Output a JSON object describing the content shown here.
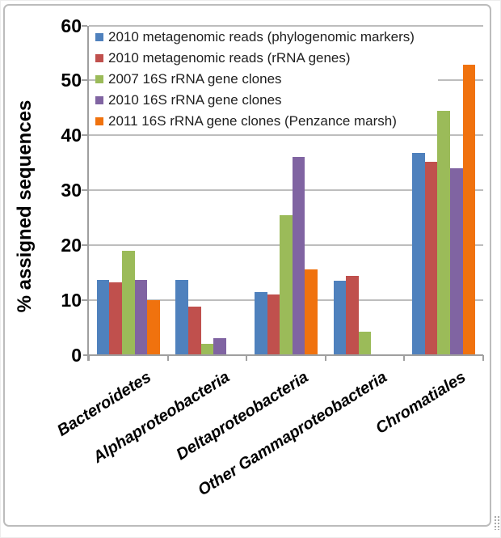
{
  "chart_data": {
    "type": "bar",
    "title": "",
    "xlabel": "",
    "ylabel": "% assigned sequences",
    "ylim": [
      0,
      60
    ],
    "yticks": [
      0,
      10,
      20,
      30,
      40,
      50,
      60
    ],
    "grid": true,
    "legend_position": "top-left-inside",
    "categories": [
      "Bacteroidetes",
      "Alphaproteobacteria",
      "Deltaproteobacteria",
      "Other Gammaproteobacteria",
      "Chromatiales"
    ],
    "series": [
      {
        "name": "2010 metagenomic reads (phylogenomic markers)",
        "color": "#4F81BD",
        "values": [
          13.6,
          13.6,
          11.5,
          13.5,
          36.8
        ]
      },
      {
        "name": "2010 metagenomic reads (rRNA genes)",
        "color": "#C0504D",
        "values": [
          13.2,
          8.8,
          11.0,
          14.4,
          35.2
        ]
      },
      {
        "name": "2007 16S rRNA gene clones",
        "color": "#9BBB59",
        "values": [
          18.9,
          2.0,
          25.4,
          4.2,
          44.4
        ]
      },
      {
        "name": "2010 16S rRNA gene clones",
        "color": "#8064A2",
        "values": [
          13.7,
          3.1,
          36.0,
          0,
          34.0
        ]
      },
      {
        "name": "2011 16S rRNA gene clones (Penzance marsh)",
        "color": "#F0720E",
        "values": [
          10.0,
          0,
          15.6,
          0,
          52.8
        ]
      }
    ]
  }
}
